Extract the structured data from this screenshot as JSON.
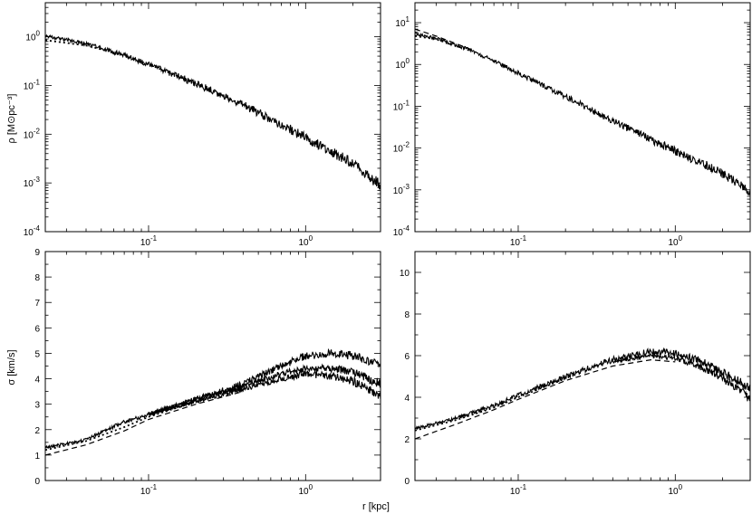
{
  "figure": {
    "ylabel_top": "ρ [M⊙pc⁻³]",
    "ylabel_bottom": "σ [km/s]",
    "xlabel": "r [kpc]"
  },
  "chart_data": [
    {
      "type": "line",
      "panel": "top-left",
      "xscale": "log",
      "yscale": "log",
      "xlim": [
        0.022,
        3.0
      ],
      "ylim": [
        0.0001,
        5.0
      ],
      "xticks": [
        {
          "value": 0.1,
          "label": "10-1"
        },
        {
          "value": 1,
          "label": "10^0"
        }
      ],
      "yticks": [
        {
          "value": 1,
          "label": "10^0"
        },
        {
          "value": 0.1,
          "label": "10-1"
        },
        {
          "value": 0.01,
          "label": "10-2"
        },
        {
          "value": 0.001,
          "label": "10-3"
        },
        {
          "value": 0.0001,
          "label": "10-4"
        }
      ],
      "series": [
        {
          "style": "solid",
          "noise": 0.12,
          "x": [
            0.022,
            0.04,
            0.07,
            0.1,
            0.2,
            0.4,
            0.7,
            1.0,
            1.5,
            2.0,
            3.0
          ],
          "y": [
            1.05,
            0.72,
            0.42,
            0.27,
            0.11,
            0.04,
            0.016,
            0.0085,
            0.0042,
            0.0025,
            0.0009
          ]
        },
        {
          "style": "dotted",
          "noise": 0.0,
          "x": [
            0.022,
            0.04,
            0.07,
            0.1,
            0.2,
            0.4
          ],
          "y": [
            0.85,
            0.66,
            0.42,
            0.27,
            0.11,
            0.04
          ]
        }
      ]
    },
    {
      "type": "line",
      "panel": "top-right",
      "xscale": "log",
      "yscale": "log",
      "xlim": [
        0.022,
        3.0
      ],
      "ylim": [
        0.0001,
        30.0
      ],
      "xticks": [
        {
          "value": 0.1,
          "label": "10-1"
        },
        {
          "value": 1,
          "label": "10^0"
        }
      ],
      "yticks": [
        {
          "value": 10,
          "label": "10^1"
        },
        {
          "value": 1,
          "label": "10^0"
        },
        {
          "value": 0.1,
          "label": "10-1"
        },
        {
          "value": 0.01,
          "label": "10-2"
        },
        {
          "value": 0.001,
          "label": "10-3"
        },
        {
          "value": 0.0001,
          "label": "10-4"
        }
      ],
      "series": [
        {
          "style": "solid",
          "noise": 0.12,
          "x": [
            0.022,
            0.03,
            0.05,
            0.08,
            0.1,
            0.2,
            0.4,
            0.7,
            1.0,
            1.5,
            2.0,
            3.0
          ],
          "y": [
            5.5,
            4.2,
            2.2,
            0.95,
            0.62,
            0.17,
            0.045,
            0.016,
            0.0085,
            0.0042,
            0.0025,
            0.0009
          ]
        },
        {
          "style": "dashed",
          "noise": 0.0,
          "x": [
            0.022,
            0.03,
            0.05
          ],
          "y": [
            7.0,
            4.8,
            2.3
          ]
        },
        {
          "style": "dotted",
          "noise": 0.0,
          "x": [
            0.022,
            0.03,
            0.05
          ],
          "y": [
            4.8,
            4.0,
            2.1
          ]
        }
      ]
    },
    {
      "type": "line",
      "panel": "bottom-left",
      "xscale": "log",
      "yscale": "linear",
      "xlim": [
        0.022,
        3.0
      ],
      "ylim": [
        0,
        9
      ],
      "xticks": [
        {
          "value": 0.1,
          "label": "10-1"
        },
        {
          "value": 1,
          "label": "10^0"
        }
      ],
      "yticks": [
        {
          "value": 0,
          "label": "0"
        },
        {
          "value": 1,
          "label": "1"
        },
        {
          "value": 2,
          "label": "2"
        },
        {
          "value": 3,
          "label": "3"
        },
        {
          "value": 4,
          "label": "4"
        },
        {
          "value": 5,
          "label": "5"
        },
        {
          "value": 6,
          "label": "6"
        },
        {
          "value": 7,
          "label": "7"
        },
        {
          "value": 8,
          "label": "8"
        },
        {
          "value": 9,
          "label": "9"
        }
      ],
      "series": [
        {
          "style": "solid",
          "noise": 0.18,
          "x": [
            0.022,
            0.04,
            0.05,
            0.07,
            0.1,
            0.2,
            0.4,
            0.7,
            1.0,
            1.5,
            2.0,
            2.5,
            3.0
          ],
          "y": [
            1.3,
            1.6,
            1.9,
            2.3,
            2.6,
            3.2,
            3.8,
            4.5,
            4.9,
            5.0,
            4.9,
            4.7,
            4.5
          ]
        },
        {
          "style": "solid",
          "noise": 0.18,
          "x": [
            0.1,
            0.2,
            0.4,
            0.7,
            1.0,
            1.5,
            2.0,
            2.5,
            3.0
          ],
          "y": [
            2.6,
            3.2,
            3.7,
            4.2,
            4.4,
            4.4,
            4.3,
            4.0,
            3.8
          ]
        },
        {
          "style": "solid",
          "noise": 0.18,
          "x": [
            0.1,
            0.2,
            0.4,
            0.7,
            1.0,
            1.5,
            2.0,
            2.5,
            3.0
          ],
          "y": [
            2.6,
            3.1,
            3.6,
            4.0,
            4.2,
            4.1,
            3.9,
            3.6,
            3.3
          ]
        },
        {
          "style": "dashed",
          "noise": 0.0,
          "x": [
            0.022,
            0.04,
            0.07,
            0.1,
            0.2,
            0.4
          ],
          "y": [
            1.0,
            1.4,
            1.95,
            2.4,
            3.0,
            3.5
          ]
        },
        {
          "style": "dotted",
          "noise": 0.0,
          "x": [
            0.022,
            0.04,
            0.07,
            0.1,
            0.2,
            0.4
          ],
          "y": [
            1.2,
            1.55,
            2.1,
            2.5,
            3.1,
            3.6
          ]
        }
      ]
    },
    {
      "type": "line",
      "panel": "bottom-right",
      "xscale": "log",
      "yscale": "linear",
      "xlim": [
        0.022,
        3.0
      ],
      "ylim": [
        0,
        11
      ],
      "xticks": [
        {
          "value": 0.1,
          "label": "10-1"
        },
        {
          "value": 1,
          "label": "10^0"
        }
      ],
      "yticks": [
        {
          "value": 0,
          "label": "0"
        },
        {
          "value": 2,
          "label": "2"
        },
        {
          "value": 4,
          "label": "4"
        },
        {
          "value": 6,
          "label": "6"
        },
        {
          "value": 8,
          "label": "8"
        },
        {
          "value": 10,
          "label": "10"
        }
      ],
      "series": [
        {
          "style": "solid",
          "noise": 0.22,
          "x": [
            0.022,
            0.04,
            0.07,
            0.1,
            0.2,
            0.4,
            0.7,
            1.0,
            1.5,
            2.0,
            2.5,
            3.0
          ],
          "y": [
            2.5,
            3.0,
            3.6,
            4.1,
            5.0,
            5.8,
            6.2,
            6.1,
            5.7,
            5.2,
            4.8,
            4.4
          ]
        },
        {
          "style": "solid",
          "noise": 0.22,
          "x": [
            0.4,
            0.7,
            1.0,
            1.5,
            2.0,
            2.5,
            3.0
          ],
          "y": [
            5.7,
            6.0,
            5.9,
            5.4,
            4.9,
            4.4,
            3.9
          ]
        },
        {
          "style": "dashed",
          "noise": 0.0,
          "x": [
            0.022,
            0.04,
            0.07,
            0.1,
            0.2,
            0.4,
            0.7,
            1.0
          ],
          "y": [
            2.0,
            2.7,
            3.4,
            3.9,
            4.8,
            5.5,
            5.8,
            5.7
          ]
        },
        {
          "style": "dotted",
          "noise": 0.0,
          "x": [
            0.022,
            0.04,
            0.07,
            0.1,
            0.2
          ],
          "y": [
            2.4,
            2.9,
            3.5,
            4.0,
            4.9
          ]
        }
      ]
    }
  ]
}
